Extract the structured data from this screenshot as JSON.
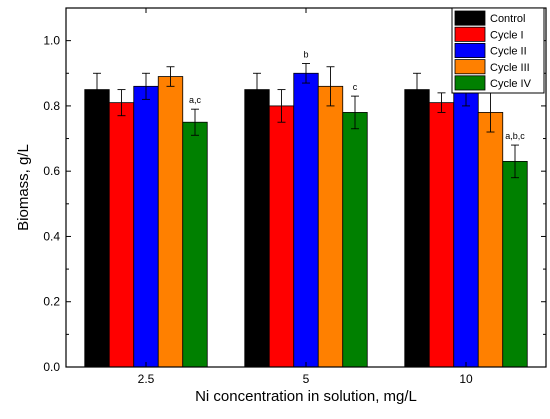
{
  "chart_data": {
    "type": "bar",
    "title": "",
    "xlabel": "Ni concentration in solution, mg/L",
    "ylabel": "Biomass, g/L",
    "ylim": [
      0.0,
      1.1
    ],
    "yticks": [
      "0.0",
      "0.2",
      "0.4",
      "0.6",
      "0.8",
      "1.0"
    ],
    "categories": [
      "2.5",
      "5",
      "10"
    ],
    "series": [
      {
        "name": "Control",
        "color": "#000000",
        "values": [
          0.85,
          0.85,
          0.85
        ],
        "errors": [
          0.05,
          0.05,
          0.05
        ]
      },
      {
        "name": "Cycle I",
        "color": "#ff0000",
        "values": [
          0.81,
          0.8,
          0.81
        ],
        "errors": [
          0.04,
          0.05,
          0.03
        ]
      },
      {
        "name": "Cycle II",
        "color": "#0000ff",
        "values": [
          0.86,
          0.9,
          0.84
        ],
        "errors": [
          0.04,
          0.03,
          0.04
        ]
      },
      {
        "name": "Cycle III",
        "color": "#ff8000",
        "values": [
          0.89,
          0.86,
          0.78
        ],
        "errors": [
          0.03,
          0.06,
          0.06
        ]
      },
      {
        "name": "Cycle IV",
        "color": "#008000",
        "values": [
          0.75,
          0.78,
          0.63
        ],
        "errors": [
          0.04,
          0.05,
          0.05
        ]
      }
    ],
    "annotations": [
      {
        "category": "2.5",
        "series": "Cycle IV",
        "text": "a,c"
      },
      {
        "category": "5",
        "series": "Cycle II",
        "text": "b"
      },
      {
        "category": "5",
        "series": "Cycle IV",
        "text": "c"
      },
      {
        "category": "10",
        "series": "Cycle IV",
        "text": "a,b,c"
      }
    ],
    "grid": false,
    "legend_position": "top-right"
  }
}
